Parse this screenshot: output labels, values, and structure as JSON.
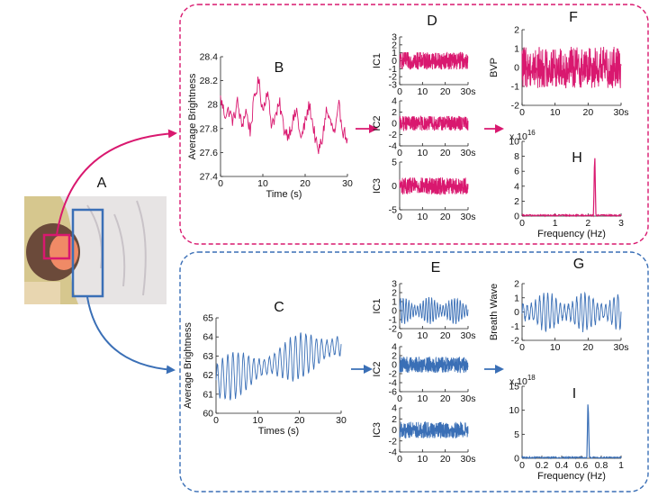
{
  "colors": {
    "pink": "#d9186f",
    "blue": "#3a6fb6",
    "photo_background": "#d6c78e",
    "blanket": "#e7e4e4",
    "skin": "#f08a66"
  },
  "labels": {
    "A": "A",
    "B": "B",
    "C": "C",
    "D": "D",
    "E": "E",
    "F": "F",
    "G": "G",
    "H": "H",
    "I": "I"
  },
  "chart_data": [
    {
      "id": "B",
      "type": "line",
      "xlabel": "Time (s)",
      "ylabel": "Average Brightness",
      "xlim": [
        0,
        30
      ],
      "ylim": [
        27.4,
        28.4
      ],
      "xticks": [
        "0",
        "10",
        "20",
        "30"
      ],
      "yticks": [
        "27.4",
        "27.6",
        "27.8",
        "28",
        "28.2",
        "28.4"
      ],
      "series": [
        {
          "color": "pink",
          "anchors": [
            [
              0,
              28.05
            ],
            [
              1,
              27.92
            ],
            [
              2,
              27.95
            ],
            [
              3,
              27.86
            ],
            [
              4,
              28.02
            ],
            [
              5,
              27.82
            ],
            [
              6,
              27.95
            ],
            [
              7,
              27.78
            ],
            [
              8,
              28.05
            ],
            [
              9,
              28.2
            ],
            [
              10,
              27.95
            ],
            [
              11,
              28.12
            ],
            [
              12,
              27.85
            ],
            [
              13,
              27.9
            ],
            [
              14,
              28.0
            ],
            [
              15,
              27.8
            ],
            [
              16,
              27.75
            ],
            [
              17,
              27.85
            ],
            [
              18,
              27.95
            ],
            [
              19,
              27.7
            ],
            [
              20,
              27.85
            ],
            [
              21,
              28.0
            ],
            [
              22,
              27.8
            ],
            [
              23,
              27.6
            ],
            [
              24,
              27.7
            ],
            [
              25,
              27.95
            ],
            [
              26,
              27.85
            ],
            [
              27,
              27.75
            ],
            [
              28,
              27.98
            ],
            [
              29,
              27.78
            ],
            [
              30,
              27.72
            ]
          ]
        }
      ]
    },
    {
      "id": "C",
      "type": "line",
      "xlabel": "Times (s)",
      "ylabel": "Average Brightness",
      "xlim": [
        0,
        30
      ],
      "ylim": [
        60,
        65
      ],
      "xticks": [
        "0",
        "10",
        "20",
        "30"
      ],
      "yticks": [
        "60",
        "61",
        "62",
        "63",
        "64",
        "65"
      ],
      "series": [
        {
          "color": "blue",
          "baseline": [
            [
              0,
              61.7
            ],
            [
              30,
              63.6
            ]
          ],
          "amplitude": 1.0,
          "period_s": 1.25
        }
      ]
    },
    {
      "id": "D1",
      "type": "line",
      "ylabel": "IC1",
      "xlim": [
        0,
        30
      ],
      "ylim": [
        -3,
        3
      ],
      "xticks": [
        "0",
        "10",
        "20",
        "30s"
      ],
      "yticks": [
        "-3",
        "-2",
        "-1",
        "0",
        "1",
        "2",
        "3"
      ],
      "series": [
        {
          "color": "pink",
          "noise_amplitude": 1.1
        }
      ]
    },
    {
      "id": "D2",
      "type": "line",
      "ylabel": "IC2",
      "xlim": [
        0,
        30
      ],
      "ylim": [
        -4,
        4
      ],
      "xticks": [
        "0",
        "10",
        "20",
        "30s"
      ],
      "yticks": [
        "-4",
        "-2",
        "0",
        "2",
        "4"
      ],
      "series": [
        {
          "color": "pink",
          "noise_amplitude": 1.3
        }
      ]
    },
    {
      "id": "D3",
      "type": "line",
      "ylabel": "IC3",
      "xlim": [
        0,
        30
      ],
      "ylim": [
        -5,
        5
      ],
      "xticks": [
        "0",
        "10",
        "20",
        "30s"
      ],
      "yticks": [
        "-5",
        "0",
        "5"
      ],
      "series": [
        {
          "color": "pink",
          "noise_amplitude": 1.8
        }
      ]
    },
    {
      "id": "F",
      "type": "line",
      "ylabel": "BVP",
      "xlim": [
        0,
        30
      ],
      "ylim": [
        -2,
        2
      ],
      "xticks": [
        "0",
        "10",
        "20",
        "30s"
      ],
      "yticks": [
        "-2",
        "-1",
        "0",
        "1",
        "2"
      ],
      "series": [
        {
          "color": "pink",
          "noise_amplitude": 1.1
        }
      ]
    },
    {
      "id": "H",
      "type": "line",
      "xlabel": "Frequency (Hz)",
      "exponent_label": "x 10",
      "exponent": "16",
      "xlim": [
        0,
        3
      ],
      "ylim": [
        0,
        10
      ],
      "xticks": [
        "0",
        "1",
        "2",
        "3"
      ],
      "yticks": [
        "0",
        "2",
        "4",
        "6",
        "8",
        "10"
      ],
      "series": [
        {
          "color": "pink",
          "peak_x": 2.2,
          "peak_y": 9.0
        }
      ]
    },
    {
      "id": "E1",
      "type": "line",
      "ylabel": "IC1",
      "xlim": [
        0,
        30
      ],
      "ylim": [
        -2,
        3
      ],
      "xticks": [
        "0",
        "10",
        "20",
        "30s"
      ],
      "yticks": [
        "-2",
        "-1",
        "0",
        "1",
        "2",
        "3"
      ],
      "series": [
        {
          "color": "blue",
          "amplitude": 1.3,
          "period_s": 1.25
        }
      ]
    },
    {
      "id": "E2",
      "type": "line",
      "ylabel": "IC2",
      "xlim": [
        0,
        30
      ],
      "ylim": [
        -6,
        4
      ],
      "xticks": [
        "0",
        "10",
        "20",
        "30s"
      ],
      "yticks": [
        "-6",
        "-4",
        "-2",
        "0",
        "2",
        "4"
      ],
      "series": [
        {
          "color": "blue",
          "noise_amplitude": 1.8
        }
      ]
    },
    {
      "id": "E3",
      "type": "line",
      "ylabel": "IC3",
      "xlim": [
        0,
        30
      ],
      "ylim": [
        -4,
        4
      ],
      "xticks": [
        "0",
        "10",
        "20",
        "30s"
      ],
      "yticks": [
        "-4",
        "-2",
        "0",
        "2",
        "4"
      ],
      "series": [
        {
          "color": "blue",
          "noise_amplitude": 1.5
        }
      ]
    },
    {
      "id": "G",
      "type": "line",
      "ylabel": "Breath Wave",
      "xlim": [
        0,
        30
      ],
      "ylim": [
        -2,
        2
      ],
      "xticks": [
        "0",
        "10",
        "20",
        "30s"
      ],
      "yticks": [
        "-2",
        "-1",
        "0",
        "1",
        "2"
      ],
      "series": [
        {
          "color": "blue",
          "amplitude": 1.2,
          "period_s": 1.25
        }
      ]
    },
    {
      "id": "I",
      "type": "line",
      "xlabel": "Frequency (Hz)",
      "exponent_label": "x 10",
      "exponent": "18",
      "xlim": [
        0,
        1.2
      ],
      "ylim": [
        0,
        15
      ],
      "xticks": [
        "0",
        "0.2",
        "0.4",
        "0.6",
        "0.8",
        "1"
      ],
      "yticks": [
        "0",
        "5",
        "10",
        "15"
      ],
      "series": [
        {
          "color": "blue",
          "peak_x": 0.8,
          "peak_y": 13.0
        }
      ]
    }
  ]
}
